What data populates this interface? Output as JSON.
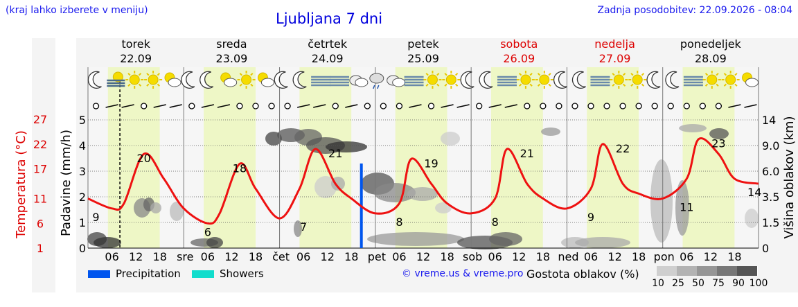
{
  "header": {
    "hint": "(kraj lahko izberete v meniju)",
    "title": "Ljubljana 7 dni",
    "updated": "Zadnja posodobitev: 22.09.2026 - 08:04"
  },
  "colors": {
    "temperature_line": "#ee1111",
    "precipitation": "#0055ee",
    "showers": "#11ddcc",
    "day_band": "#eef7c6",
    "night_band": "#f6f6f6",
    "weekend_text": "#dd0000",
    "link_text": "#1a1aee"
  },
  "legend": {
    "precipitation": "Precipitation",
    "showers": "Showers",
    "credit": "© vreme.us & vreme.pro",
    "cloud_density_label": "Gostota oblakov (%)",
    "cloud_density_ticks": [
      "10",
      "25",
      "50",
      "75",
      "90",
      "100"
    ],
    "cloud_density_colors": [
      "#cfcfcf",
      "#b3b3b3",
      "#969696",
      "#777777",
      "#555555"
    ]
  },
  "chart_data": {
    "type": "line",
    "days": [
      {
        "name": "torek",
        "date": "22.09",
        "weekend": false,
        "abbr": ""
      },
      {
        "name": "sreda",
        "date": "23.09",
        "weekend": false,
        "abbr": "sre"
      },
      {
        "name": "četrtek",
        "date": "24.09",
        "weekend": false,
        "abbr": "čet"
      },
      {
        "name": "petek",
        "date": "25.09",
        "weekend": false,
        "abbr": "pet"
      },
      {
        "name": "sobota",
        "date": "26.09",
        "weekend": true,
        "abbr": "sob"
      },
      {
        "name": "nedelja",
        "date": "27.09",
        "weekend": true,
        "abbr": "ned"
      },
      {
        "name": "ponedeljek",
        "date": "28.09",
        "weekend": false,
        "abbr": "pon"
      }
    ],
    "hour_ticks": [
      "06",
      "12",
      "18"
    ],
    "x_range_hours": [
      0,
      168
    ],
    "now_hour": 8,
    "y_left_precip": {
      "label": "Padavine (mm/h)",
      "ticks": [
        0,
        1,
        2,
        3,
        4,
        5
      ],
      "range": [
        0,
        5
      ]
    },
    "y_left_temp": {
      "label": "Temperatura (°C)",
      "ticks": [
        1,
        6,
        11,
        17,
        22,
        27
      ]
    },
    "y_right_cloud": {
      "label": "Višina oblakov (km)",
      "ticks": [
        "0",
        "1.5",
        "3.5",
        "6.0",
        "9.0",
        "14"
      ]
    },
    "temperature_series": {
      "hours": [
        0,
        6,
        9,
        14,
        19,
        24,
        30,
        33,
        38,
        42,
        48,
        53,
        57,
        62,
        66,
        72,
        78,
        81,
        86,
        90,
        96,
        102,
        105,
        110,
        114,
        120,
        126,
        129,
        134,
        138,
        144,
        150,
        153,
        158,
        162,
        168
      ],
      "values": [
        11,
        9,
        10,
        20,
        15,
        9,
        6,
        8,
        18,
        13,
        7,
        13,
        21,
        14,
        11,
        8,
        10,
        19,
        14,
        10,
        8,
        11,
        21,
        14,
        11,
        9,
        13,
        22,
        14,
        12,
        11,
        15,
        23,
        20,
        15,
        14
      ]
    },
    "temp_labels": [
      {
        "hour": 2,
        "value": "9"
      },
      {
        "hour": 14,
        "value": "20"
      },
      {
        "hour": 30,
        "value": "6"
      },
      {
        "hour": 38,
        "value": "18"
      },
      {
        "hour": 54,
        "value": "7"
      },
      {
        "hour": 62,
        "value": "21"
      },
      {
        "hour": 78,
        "value": "8"
      },
      {
        "hour": 86,
        "value": "19"
      },
      {
        "hour": 102,
        "value": "8"
      },
      {
        "hour": 110,
        "value": "21"
      },
      {
        "hour": 126,
        "value": "9"
      },
      {
        "hour": 134,
        "value": "22"
      },
      {
        "hour": 150,
        "value": "11"
      },
      {
        "hour": 158,
        "value": "23"
      },
      {
        "hour": 167,
        "value": "14"
      }
    ],
    "precipitation_bars": [
      {
        "hour": 68.5,
        "mm_h": 3.3
      }
    ],
    "weather_icons": [
      "moon-icon",
      "haze-icon",
      "sun-icon",
      "sun-icon",
      "partly-cloudy-icon",
      "moon-icon",
      "moon-icon",
      "partly-cloudy-icon",
      "sun-icon",
      "partly-cloudy-icon",
      "moon-icon",
      "moon-icon",
      "fog-icon",
      "fog-icon",
      "cloudy-icon",
      "drizzle-icon",
      "cloudy-icon",
      "fog-icon",
      "sun-icon",
      "sun-icon",
      "moon-icon",
      "moon-icon",
      "fog-icon",
      "sun-icon",
      "sun-icon",
      "moon-icon",
      "moon-icon",
      "fog-icon",
      "sun-icon",
      "sun-icon",
      "moon-icon",
      "moon-icon",
      "fog-icon",
      "sun-icon",
      "sun-icon",
      "partly-cloudy-icon"
    ]
  }
}
